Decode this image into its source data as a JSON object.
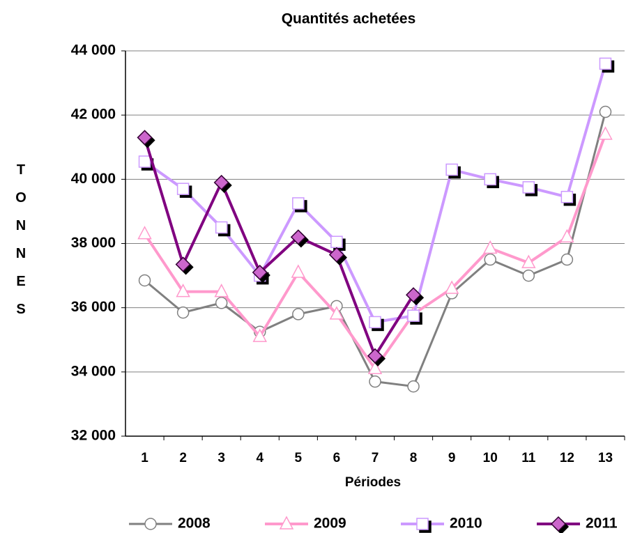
{
  "chart_data": {
    "type": "line",
    "title": "Quantités achetées",
    "x_label": "Périodes",
    "y_label": "TONNES",
    "categories": [
      "1",
      "2",
      "3",
      "4",
      "5",
      "6",
      "7",
      "8",
      "9",
      "10",
      "11",
      "12",
      "13"
    ],
    "series": [
      {
        "name": "2008",
        "color": "#808080",
        "marker": "circle",
        "values": [
          36850,
          35850,
          36150,
          35250,
          35800,
          36050,
          33700,
          33550,
          36450,
          37500,
          37000,
          37500,
          42100
        ]
      },
      {
        "name": "2009",
        "color": "#ff99cc",
        "marker": "triangle",
        "values": [
          38300,
          36500,
          36500,
          35100,
          37100,
          35800,
          34100,
          35800,
          36600,
          37850,
          37400,
          38200,
          41400
        ]
      },
      {
        "name": "2010",
        "color": "#cc99ff",
        "marker": "square",
        "values": [
          40550,
          39700,
          38500,
          37000,
          39250,
          38050,
          35550,
          35750,
          40300,
          40000,
          39750,
          39450,
          43600
        ]
      },
      {
        "name": "2011",
        "color": "#800080",
        "marker": "diamond",
        "values": [
          41300,
          37350,
          39900,
          37100,
          38200,
          37650,
          34500,
          36400,
          null,
          null,
          null,
          null,
          null
        ]
      }
    ],
    "ylim": [
      32000,
      44000
    ],
    "yticks": [
      {
        "value": 32000,
        "label": "32 000"
      },
      {
        "value": 34000,
        "label": "34 000"
      },
      {
        "value": 36000,
        "label": "36 000"
      },
      {
        "value": 38000,
        "label": "38 000"
      },
      {
        "value": 40000,
        "label": "40 000"
      },
      {
        "value": 42000,
        "label": "42 000"
      },
      {
        "value": 44000,
        "label": "44 000"
      }
    ],
    "grid": true,
    "legend": "bottom"
  }
}
